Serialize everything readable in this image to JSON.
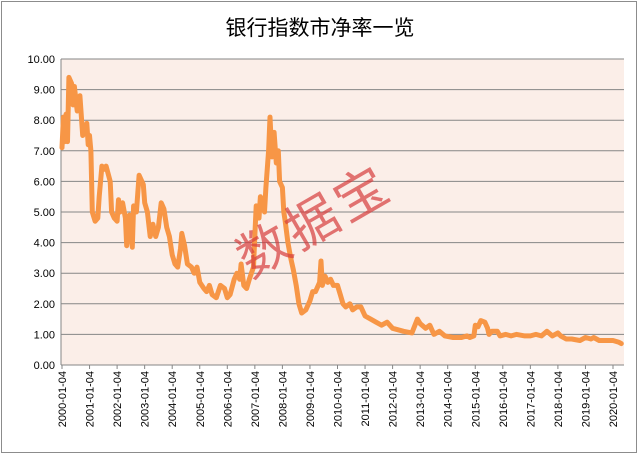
{
  "chart_data": {
    "type": "line",
    "title": "银行指数市净率一览",
    "watermark": "数据宝",
    "xlabel": "",
    "ylabel": "",
    "ylim": [
      0,
      10
    ],
    "grid": true,
    "legend": "none",
    "yticks": [
      "0.00",
      "1.00",
      "2.00",
      "3.00",
      "4.00",
      "5.00",
      "6.00",
      "7.00",
      "8.00",
      "9.00",
      "10.00"
    ],
    "xticks": [
      "2000-01-04",
      "2001-01-04",
      "2002-01-04",
      "2003-01-04",
      "2004-01-04",
      "2005-01-04",
      "2006-01-04",
      "2007-01-04",
      "2008-01-04",
      "2009-01-04",
      "2010-01-04",
      "2011-01-04",
      "2012-01-04",
      "2013-01-04",
      "2014-01-04",
      "2015-01-04",
      "2016-01-04",
      "2017-01-04",
      "2018-01-04",
      "2019-01-04",
      "2020-01-04"
    ],
    "line_color": "#f79646",
    "plot_bg": "#fbeee8",
    "series": [
      {
        "name": "银行指数市净率",
        "points": [
          [
            2000.0,
            7.1
          ],
          [
            2000.05,
            8.1
          ],
          [
            2000.1,
            7.3
          ],
          [
            2000.15,
            8.2
          ],
          [
            2000.2,
            7.3
          ],
          [
            2000.25,
            9.4
          ],
          [
            2000.35,
            9.2
          ],
          [
            2000.4,
            8.5
          ],
          [
            2000.45,
            9.1
          ],
          [
            2000.55,
            8.3
          ],
          [
            2000.65,
            8.8
          ],
          [
            2000.75,
            7.5
          ],
          [
            2000.9,
            7.9
          ],
          [
            2000.95,
            7.2
          ],
          [
            2001.0,
            7.5
          ],
          [
            2001.05,
            7.0
          ],
          [
            2001.1,
            5.0
          ],
          [
            2001.2,
            4.7
          ],
          [
            2001.3,
            4.8
          ],
          [
            2001.35,
            5.5
          ],
          [
            2001.45,
            6.5
          ],
          [
            2001.55,
            6.4
          ],
          [
            2001.6,
            6.5
          ],
          [
            2001.75,
            6.0
          ],
          [
            2001.8,
            5.0
          ],
          [
            2001.9,
            4.8
          ],
          [
            2002.0,
            4.7
          ],
          [
            2002.05,
            5.4
          ],
          [
            2002.1,
            5.0
          ],
          [
            2002.2,
            5.3
          ],
          [
            2002.3,
            4.8
          ],
          [
            2002.35,
            3.9
          ],
          [
            2002.45,
            4.9
          ],
          [
            2002.55,
            3.85
          ],
          [
            2002.6,
            5.2
          ],
          [
            2002.7,
            5.0
          ],
          [
            2002.8,
            6.2
          ],
          [
            2002.95,
            5.9
          ],
          [
            2003.0,
            5.3
          ],
          [
            2003.1,
            5.0
          ],
          [
            2003.2,
            4.2
          ],
          [
            2003.3,
            4.6
          ],
          [
            2003.4,
            4.2
          ],
          [
            2003.5,
            4.5
          ],
          [
            2003.6,
            5.3
          ],
          [
            2003.7,
            5.1
          ],
          [
            2003.8,
            4.5
          ],
          [
            2003.9,
            4.2
          ],
          [
            2004.0,
            3.6
          ],
          [
            2004.1,
            3.3
          ],
          [
            2004.2,
            3.2
          ],
          [
            2004.3,
            3.8
          ],
          [
            2004.35,
            4.3
          ],
          [
            2004.45,
            3.9
          ],
          [
            2004.55,
            3.3
          ],
          [
            2004.7,
            3.2
          ],
          [
            2004.8,
            3.0
          ],
          [
            2004.9,
            3.2
          ],
          [
            2005.0,
            2.7
          ],
          [
            2005.15,
            2.5
          ],
          [
            2005.25,
            2.4
          ],
          [
            2005.35,
            2.6
          ],
          [
            2005.45,
            2.3
          ],
          [
            2005.6,
            2.2
          ],
          [
            2005.75,
            2.6
          ],
          [
            2005.9,
            2.5
          ],
          [
            2006.0,
            2.2
          ],
          [
            2006.1,
            2.3
          ],
          [
            2006.25,
            2.8
          ],
          [
            2006.35,
            3.0
          ],
          [
            2006.45,
            2.8
          ],
          [
            2006.5,
            3.3
          ],
          [
            2006.6,
            2.6
          ],
          [
            2006.7,
            2.5
          ],
          [
            2006.8,
            2.8
          ],
          [
            2006.95,
            3.2
          ],
          [
            2007.0,
            4.2
          ],
          [
            2007.05,
            5.2
          ],
          [
            2007.15,
            4.8
          ],
          [
            2007.2,
            5.5
          ],
          [
            2007.35,
            5.0
          ],
          [
            2007.4,
            5.8
          ],
          [
            2007.5,
            7.0
          ],
          [
            2007.55,
            8.1
          ],
          [
            2007.62,
            6.8
          ],
          [
            2007.7,
            7.6
          ],
          [
            2007.78,
            6.6
          ],
          [
            2007.85,
            7.0
          ],
          [
            2007.9,
            6.0
          ],
          [
            2008.0,
            5.8
          ],
          [
            2008.05,
            5.0
          ],
          [
            2008.1,
            4.7
          ],
          [
            2008.2,
            4.0
          ],
          [
            2008.3,
            3.5
          ],
          [
            2008.4,
            3.1
          ],
          [
            2008.5,
            2.6
          ],
          [
            2008.6,
            2.0
          ],
          [
            2008.7,
            1.7
          ],
          [
            2008.85,
            1.8
          ],
          [
            2009.0,
            2.1
          ],
          [
            2009.1,
            2.4
          ],
          [
            2009.2,
            2.4
          ],
          [
            2009.35,
            2.7
          ],
          [
            2009.4,
            3.4
          ],
          [
            2009.45,
            2.6
          ],
          [
            2009.55,
            2.9
          ],
          [
            2009.65,
            2.7
          ],
          [
            2009.75,
            2.8
          ],
          [
            2009.85,
            2.6
          ],
          [
            2010.0,
            2.6
          ],
          [
            2010.1,
            2.3
          ],
          [
            2010.2,
            2.0
          ],
          [
            2010.3,
            1.9
          ],
          [
            2010.45,
            2.0
          ],
          [
            2010.55,
            1.8
          ],
          [
            2010.7,
            1.9
          ],
          [
            2010.85,
            1.9
          ],
          [
            2011.0,
            1.6
          ],
          [
            2011.2,
            1.5
          ],
          [
            2011.4,
            1.4
          ],
          [
            2011.6,
            1.3
          ],
          [
            2011.8,
            1.4
          ],
          [
            2012.0,
            1.2
          ],
          [
            2012.2,
            1.15
          ],
          [
            2012.4,
            1.1
          ],
          [
            2012.7,
            1.05
          ],
          [
            2012.9,
            1.5
          ],
          [
            2013.0,
            1.35
          ],
          [
            2013.2,
            1.2
          ],
          [
            2013.35,
            1.3
          ],
          [
            2013.5,
            1.0
          ],
          [
            2013.7,
            1.1
          ],
          [
            2013.9,
            0.95
          ],
          [
            2014.2,
            0.9
          ],
          [
            2014.5,
            0.9
          ],
          [
            2014.7,
            0.95
          ],
          [
            2014.8,
            0.9
          ],
          [
            2014.95,
            0.95
          ],
          [
            2015.0,
            1.3
          ],
          [
            2015.1,
            1.25
          ],
          [
            2015.2,
            1.45
          ],
          [
            2015.35,
            1.4
          ],
          [
            2015.45,
            1.2
          ],
          [
            2015.5,
            1.0
          ],
          [
            2015.6,
            1.1
          ],
          [
            2015.8,
            1.1
          ],
          [
            2015.9,
            0.95
          ],
          [
            2016.1,
            1.0
          ],
          [
            2016.3,
            0.95
          ],
          [
            2016.5,
            1.0
          ],
          [
            2016.8,
            0.95
          ],
          [
            2017.0,
            0.95
          ],
          [
            2017.2,
            1.0
          ],
          [
            2017.4,
            0.95
          ],
          [
            2017.6,
            1.1
          ],
          [
            2017.8,
            0.95
          ],
          [
            2018.0,
            1.05
          ],
          [
            2018.1,
            0.95
          ],
          [
            2018.3,
            0.85
          ],
          [
            2018.5,
            0.85
          ],
          [
            2018.8,
            0.8
          ],
          [
            2019.0,
            0.9
          ],
          [
            2019.2,
            0.85
          ],
          [
            2019.3,
            0.9
          ],
          [
            2019.5,
            0.8
          ],
          [
            2019.7,
            0.8
          ],
          [
            2020.0,
            0.8
          ],
          [
            2020.2,
            0.75
          ],
          [
            2020.3,
            0.7
          ]
        ]
      }
    ]
  }
}
